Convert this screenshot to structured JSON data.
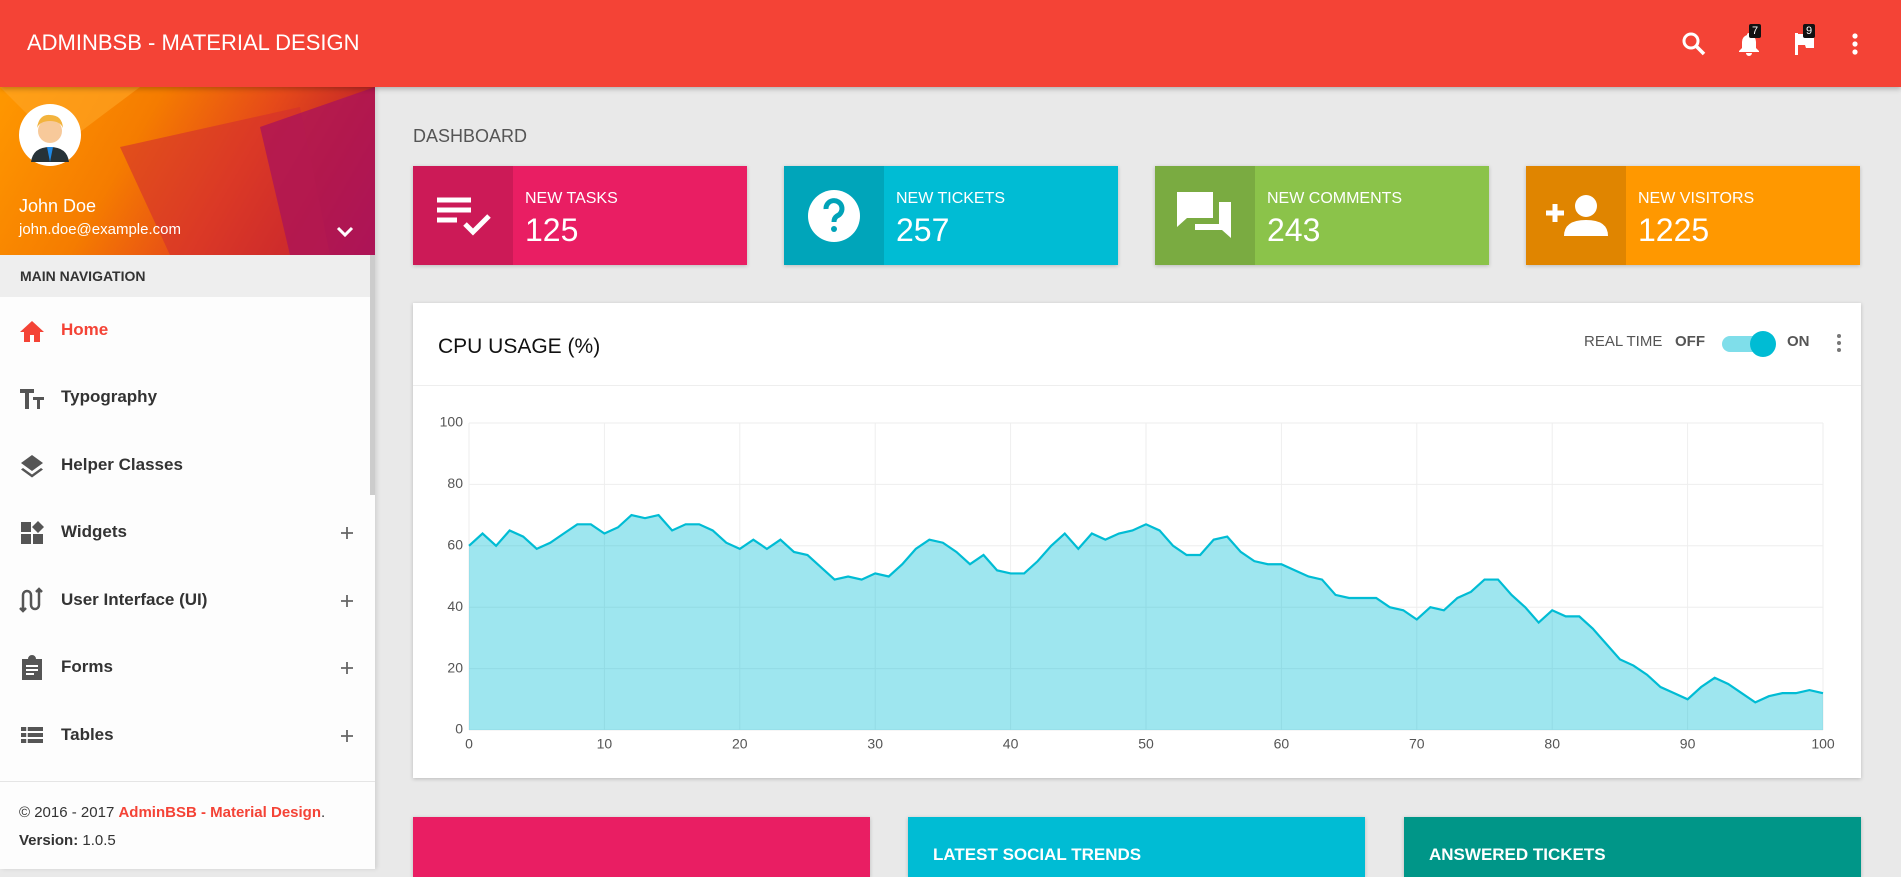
{
  "header": {
    "title": "ADMINBSB - MATERIAL DESIGN",
    "notifications": 7,
    "flags": 9
  },
  "user": {
    "name": "John Doe",
    "email": "john.doe@example.com"
  },
  "navigation": {
    "heading": "MAIN NAVIGATION",
    "items": [
      "Home",
      "Typography",
      "Helper Classes",
      "Widgets",
      "User Interface (UI)",
      "Forms",
      "Tables"
    ]
  },
  "footer": {
    "copyright": "© 2016 - 2017",
    "brand": "AdminBSB - Material Design",
    "period": ".",
    "version_label": "Version:",
    "version": "1.0.5"
  },
  "page_title": "DASHBOARD",
  "info_boxes": [
    {
      "label": "NEW TASKS",
      "value": 125
    },
    {
      "label": "NEW TICKETS",
      "value": 257
    },
    {
      "label": "NEW COMMENTS",
      "value": 243
    },
    {
      "label": "NEW VISITORS",
      "value": 1225
    }
  ],
  "realtime_switch": {
    "label": "REAL TIME",
    "off": "OFF",
    "on": "ON"
  },
  "chart_data": {
    "type": "area",
    "title": "CPU USAGE (%)",
    "x": [
      0,
      1,
      2,
      3,
      4,
      5,
      6,
      7,
      8,
      9,
      10,
      11,
      12,
      13,
      14,
      15,
      16,
      17,
      18,
      19,
      20,
      21,
      22,
      23,
      24,
      25,
      26,
      27,
      28,
      29,
      30,
      31,
      32,
      33,
      34,
      35,
      36,
      37,
      38,
      39,
      40,
      41,
      42,
      43,
      44,
      45,
      46,
      47,
      48,
      49,
      50,
      51,
      52,
      53,
      54,
      55,
      56,
      57,
      58,
      59,
      60,
      61,
      62,
      63,
      64,
      65,
      66,
      67,
      68,
      69,
      70,
      71,
      72,
      73,
      74,
      75,
      76,
      77,
      78,
      79,
      80,
      81,
      82,
      83,
      84,
      85,
      86,
      87,
      88,
      89,
      90,
      91,
      92,
      93,
      94,
      95,
      96,
      97,
      98,
      99,
      100
    ],
    "series": [
      {
        "name": "CPU usage",
        "color": "#00bcd4",
        "values": [
          60,
          64,
          60,
          65,
          63,
          59,
          61,
          64,
          67,
          67,
          64,
          66,
          70,
          69,
          70,
          65,
          67,
          67,
          65,
          61,
          59,
          62,
          59,
          62,
          58,
          57,
          53,
          49,
          50,
          49,
          51,
          50,
          54,
          59,
          62,
          61,
          58,
          54,
          57,
          52,
          51,
          51,
          55,
          60,
          64,
          59,
          64,
          62,
          64,
          65,
          67,
          65,
          60,
          57,
          57,
          62,
          63,
          58,
          55,
          54,
          54,
          52,
          50,
          49,
          44,
          43,
          43,
          43,
          40,
          39,
          36,
          40,
          39,
          43,
          45,
          49,
          49,
          44,
          40,
          35,
          39,
          37,
          37,
          33,
          28,
          23,
          21,
          18,
          14,
          12,
          10,
          14,
          17,
          15,
          12,
          9,
          11,
          12,
          12,
          13,
          12
        ]
      }
    ],
    "xlim": [
      0,
      100
    ],
    "ylim": [
      0,
      100
    ],
    "xticks": [
      0,
      10,
      20,
      30,
      40,
      50,
      60,
      70,
      80,
      90,
      100
    ],
    "yticks": [
      0,
      20,
      40,
      60,
      80,
      100
    ],
    "grid": true
  },
  "bottom_cards": [
    "LATEST SOCIAL TRENDS",
    "ANSWERED TICKETS"
  ]
}
